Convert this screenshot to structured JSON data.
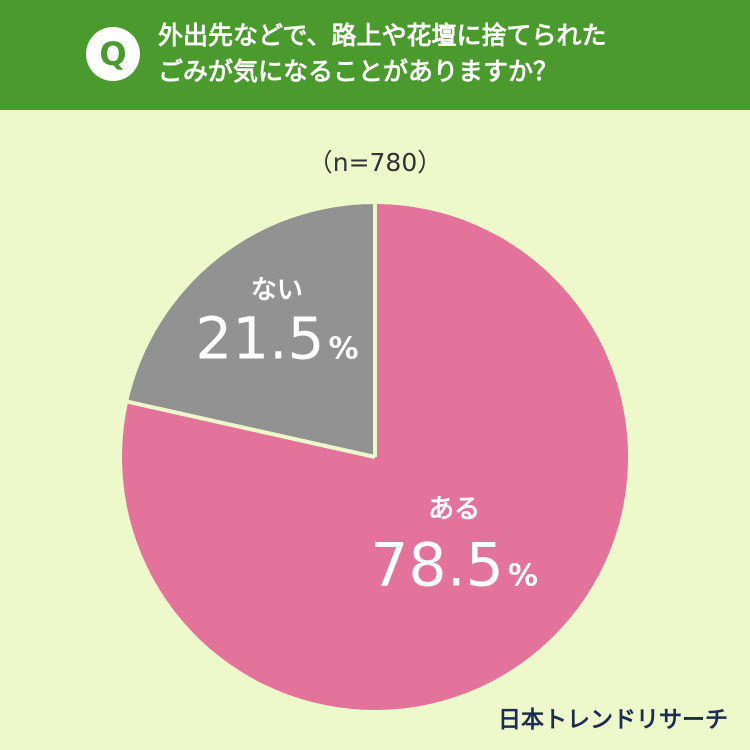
{
  "header": {
    "badge": "Q",
    "question_line1": "外出先などで、路上や花壇に捨てられた",
    "question_line2": "ごみが気になることがありますか？"
  },
  "sample_size": "（n=780）",
  "chart_data": {
    "type": "pie",
    "slices": [
      {
        "label": "ない",
        "value": 21.5,
        "value_text": "21.5",
        "unit": "%",
        "color": "#919291"
      },
      {
        "label": "ある",
        "value": 78.5,
        "value_text": "78.5",
        "unit": "%",
        "color": "#e4739b"
      }
    ],
    "start_angle_deg": 0,
    "direction": "counterclockwise",
    "divider_color": "#edf8cb"
  },
  "footer": {
    "logo": "日本トレンドリサーチ"
  }
}
